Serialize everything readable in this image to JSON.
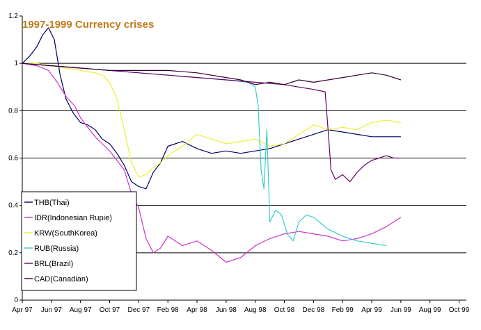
{
  "chart_data": {
    "type": "line",
    "title": "1997-1999 Currency crises",
    "title_color": "#c07a1a",
    "xlabel": "",
    "ylabel": "",
    "ylim": [
      0,
      1.2
    ],
    "y_ticks": [
      {
        "value": 0,
        "label": "0"
      },
      {
        "value": 0.2,
        "label": "0.2"
      },
      {
        "value": 0.4,
        "label": "0.4"
      },
      {
        "value": 0.6,
        "label": "0.6"
      },
      {
        "value": 0.8,
        "label": "0.8"
      },
      {
        "value": 1,
        "label": "1"
      },
      {
        "value": 1.2,
        "label": "1.2"
      }
    ],
    "x_range": [
      0,
      30.5
    ],
    "x_ticks": [
      {
        "value": 0,
        "label": "Apr 97"
      },
      {
        "value": 2,
        "label": "Jun 97"
      },
      {
        "value": 4,
        "label": "Aug 97"
      },
      {
        "value": 6,
        "label": "Oct 97"
      },
      {
        "value": 8,
        "label": "Dec 97"
      },
      {
        "value": 10,
        "label": "Feb 98"
      },
      {
        "value": 12,
        "label": "Apr 98"
      },
      {
        "value": 14,
        "label": "Jun 98"
      },
      {
        "value": 16,
        "label": "Aug 98"
      },
      {
        "value": 18,
        "label": "Oct 98"
      },
      {
        "value": 20,
        "label": "Dec 98"
      },
      {
        "value": 22,
        "label": "Feb 99"
      },
      {
        "value": 24,
        "label": "Apr 99"
      },
      {
        "value": 26,
        "label": "Jun 99"
      },
      {
        "value": 28,
        "label": "Aug 99"
      },
      {
        "value": 30,
        "label": "Oct 99"
      }
    ],
    "gridlines_y": [
      0.2,
      0.4,
      0.6,
      0.8,
      1.0
    ],
    "legend_position": "bottom-left",
    "series": [
      {
        "name": "THB(Thai)",
        "color": "#000066",
        "x": [
          0,
          0.5,
          1,
          1.4,
          1.8,
          2.2,
          2.6,
          3,
          3.5,
          4,
          4.5,
          5,
          5.5,
          6,
          6.5,
          7,
          7.5,
          8,
          8.5,
          9,
          9.5,
          10,
          11,
          12,
          13,
          14,
          15,
          16,
          17,
          18,
          19,
          20,
          21,
          22,
          23,
          24,
          25,
          26
        ],
        "y": [
          1,
          1.03,
          1.07,
          1.12,
          1.15,
          1.1,
          0.95,
          0.85,
          0.79,
          0.75,
          0.74,
          0.72,
          0.68,
          0.66,
          0.62,
          0.57,
          0.5,
          0.48,
          0.47,
          0.54,
          0.58,
          0.65,
          0.67,
          0.64,
          0.62,
          0.63,
          0.62,
          0.63,
          0.64,
          0.66,
          0.68,
          0.7,
          0.72,
          0.71,
          0.7,
          0.69,
          0.69,
          0.69
        ]
      },
      {
        "name": "IDR(Indonesian Rupie)",
        "color": "#cc33cc",
        "x": [
          0,
          1,
          1.8,
          2.4,
          3,
          3.6,
          4,
          4.5,
          5,
          5.5,
          6,
          6.5,
          7,
          7.5,
          8,
          8.5,
          9,
          9.5,
          10,
          11,
          12,
          13,
          14,
          15,
          16,
          17,
          18,
          19,
          20,
          21,
          22,
          23,
          24,
          25,
          26
        ],
        "y": [
          1,
          0.99,
          0.97,
          0.92,
          0.86,
          0.82,
          0.77,
          0.73,
          0.69,
          0.66,
          0.63,
          0.59,
          0.55,
          0.45,
          0.39,
          0.26,
          0.2,
          0.22,
          0.27,
          0.23,
          0.25,
          0.21,
          0.16,
          0.18,
          0.23,
          0.26,
          0.28,
          0.29,
          0.28,
          0.27,
          0.25,
          0.26,
          0.28,
          0.31,
          0.35
        ]
      },
      {
        "name": "KRW(SouthKorea)",
        "color": "#eeee33",
        "x": [
          0,
          1,
          2,
          3,
          4,
          5,
          5.5,
          6,
          6.5,
          7,
          7.5,
          8,
          8.5,
          9,
          9.5,
          10,
          11,
          12,
          13,
          14,
          15,
          16,
          17,
          18,
          19,
          20,
          21,
          22,
          23,
          24,
          25,
          26
        ],
        "y": [
          1,
          1,
          0.99,
          0.98,
          0.97,
          0.96,
          0.95,
          0.92,
          0.85,
          0.72,
          0.58,
          0.52,
          0.53,
          0.56,
          0.58,
          0.61,
          0.65,
          0.7,
          0.68,
          0.66,
          0.67,
          0.68,
          0.65,
          0.66,
          0.7,
          0.74,
          0.72,
          0.73,
          0.72,
          0.75,
          0.76,
          0.75
        ]
      },
      {
        "name": "RUB(Russia)",
        "color": "#33cccc",
        "x": [
          0,
          2,
          4,
          6,
          8,
          10,
          12,
          14,
          15.5,
          16,
          16.2,
          16.4,
          16.6,
          16.8,
          17,
          17.4,
          17.8,
          18.2,
          18.6,
          19,
          19.5,
          20,
          21,
          22,
          23,
          24,
          25
        ],
        "y": [
          1,
          0.99,
          0.98,
          0.97,
          0.96,
          0.95,
          0.94,
          0.93,
          0.92,
          0.9,
          0.82,
          0.55,
          0.47,
          0.72,
          0.33,
          0.38,
          0.36,
          0.28,
          0.25,
          0.33,
          0.36,
          0.35,
          0.3,
          0.27,
          0.25,
          0.24,
          0.23
        ]
      },
      {
        "name": "BRL(Brazil)",
        "color": "#660066",
        "x": [
          0,
          2,
          4,
          6,
          8,
          10,
          12,
          14,
          16,
          18,
          19,
          20,
          20.8,
          21,
          21.2,
          21.5,
          22,
          22.5,
          23,
          23.5,
          24,
          24.5,
          25,
          25.5,
          26
        ],
        "y": [
          1,
          0.99,
          0.98,
          0.97,
          0.96,
          0.95,
          0.94,
          0.93,
          0.92,
          0.91,
          0.9,
          0.89,
          0.88,
          0.72,
          0.55,
          0.51,
          0.53,
          0.5,
          0.54,
          0.57,
          0.59,
          0.6,
          0.61,
          0.6,
          0.6
        ]
      },
      {
        "name": "CAD(Canadian)",
        "color": "#330033",
        "x": [
          0,
          2,
          4,
          6,
          8,
          10,
          12,
          14,
          15,
          16,
          17,
          18,
          19,
          20,
          21,
          22,
          23,
          24,
          25,
          26
        ],
        "y": [
          1,
          0.99,
          0.98,
          0.97,
          0.97,
          0.97,
          0.96,
          0.94,
          0.93,
          0.91,
          0.92,
          0.91,
          0.93,
          0.92,
          0.93,
          0.94,
          0.95,
          0.96,
          0.95,
          0.93
        ]
      }
    ]
  }
}
